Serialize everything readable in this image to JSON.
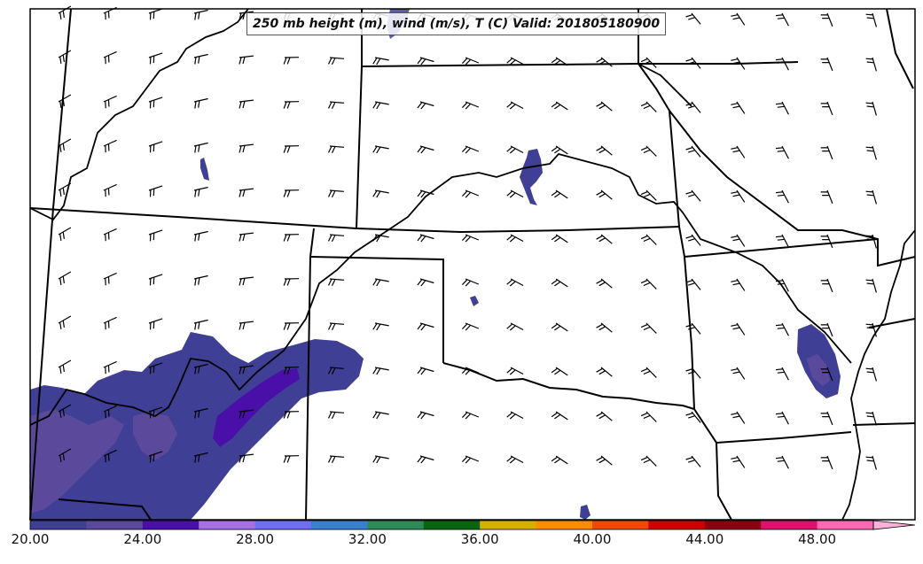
{
  "title": "250 mb height (m), wind (m/s), T (C) Valid: 201805180900",
  "colorbar": {
    "ticks": [
      "20.00",
      "24.00",
      "28.00",
      "32.00",
      "36.00",
      "40.00",
      "44.00",
      "48.00"
    ],
    "colors": [
      "#3f3f96",
      "#5b4a9b",
      "#4a0fa8",
      "#a66fe6",
      "#6f6ff2",
      "#3a7fd0",
      "#2e8b57",
      "#0a6410",
      "#d4b000",
      "#ff8c00",
      "#ee4b00",
      "#cc0000",
      "#8b0010",
      "#e0106e",
      "#ff69b4",
      "#ffb0d8"
    ]
  }
}
